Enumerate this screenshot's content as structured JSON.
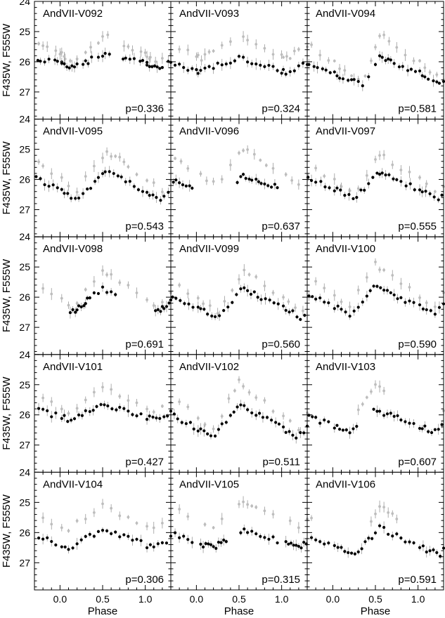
{
  "figure": {
    "ylabel": "F435W, F555W",
    "xlabel": "Phase",
    "x_ticks": [
      "0.0",
      "0.5",
      "1.0"
    ],
    "y_ticks": [
      "24",
      "25",
      "26",
      "27"
    ]
  },
  "colors": {
    "f435w": "#bdbdbd",
    "f555w": "#000000",
    "error": "#9a9a9a",
    "frame": "#000000"
  },
  "chart_data": [
    {
      "type": "scatter",
      "name": "AndVII-V092",
      "period": "p=0.336",
      "xlim": [
        -0.3,
        1.3
      ],
      "ylim": [
        27.9,
        24.0
      ],
      "y_inverted": true,
      "mean_f555w": 25.95,
      "amp_f555w": 0.45,
      "mean_f435w": 25.55,
      "amp_f435w": 0.8,
      "max_phase": 0.55,
      "shape": 0.4,
      "f555w_phases": [
        0.02,
        0.05,
        0.08,
        0.11,
        0.14,
        0.17,
        0.2,
        0.27,
        0.3,
        0.33,
        0.37,
        0.45,
        0.5,
        0.53,
        0.58,
        0.74,
        0.77,
        0.82,
        0.87,
        0.94,
        0.97,
        1.02
      ],
      "f435w_phases": [
        0.02,
        0.06,
        0.12,
        0.2,
        0.3,
        0.36,
        0.45,
        0.5,
        0.56,
        0.75,
        0.8,
        0.85,
        0.95,
        1.0,
        1.05
      ]
    },
    {
      "type": "scatter",
      "name": "AndVII-V093",
      "period": "p=0.324",
      "xlim": [
        -0.3,
        1.3
      ],
      "ylim": [
        27.9,
        24.0
      ],
      "y_inverted": true,
      "mean_f555w": 26.1,
      "amp_f555w": 0.5,
      "mean_f435w": 25.5,
      "amp_f435w": 0.8,
      "max_phase": 0.5,
      "shape": 0.45,
      "f555w_phases": [
        0.02,
        0.05,
        0.1,
        0.15,
        0.2,
        0.25,
        0.3,
        0.35,
        0.4,
        0.45,
        0.5,
        0.55,
        0.6,
        0.65,
        0.7,
        0.75,
        0.8,
        0.85,
        0.9,
        0.95,
        1.0
      ],
      "f435w_phases": [
        0.02,
        0.06,
        0.1,
        0.15,
        0.2,
        0.3,
        0.4,
        0.55,
        0.6,
        0.7,
        0.8,
        0.9,
        1.0
      ]
    },
    {
      "type": "scatter",
      "name": "AndVII-V094",
      "period": "p=0.581",
      "xlim": [
        -0.3,
        1.3
      ],
      "ylim": [
        27.9,
        24.0
      ],
      "y_inverted": true,
      "mean_f555w": 26.3,
      "amp_f555w": 1.0,
      "mean_f435w": 25.9,
      "amp_f435w": 1.6,
      "max_phase": 0.55,
      "shape": 0.2,
      "f555w_phases": [
        0.02,
        0.05,
        0.08,
        0.12,
        0.18,
        0.22,
        0.25,
        0.3,
        0.35,
        0.42,
        0.5,
        0.55,
        0.58,
        0.62,
        0.65,
        0.68,
        0.72,
        0.78,
        0.82,
        0.88,
        0.92,
        0.97
      ],
      "f435w_phases": [
        0.02,
        0.08,
        0.14,
        0.22,
        0.3,
        0.38,
        0.45,
        0.5,
        0.55,
        0.6,
        0.66,
        0.75,
        0.85,
        0.95
      ]
    },
    {
      "type": "scatter",
      "name": "AndVII-V095",
      "period": "p=0.543",
      "xlim": [
        -0.3,
        1.3
      ],
      "ylim": [
        27.9,
        24.0
      ],
      "y_inverted": true,
      "mean_f555w": 26.2,
      "amp_f555w": 0.9,
      "mean_f435w": 25.7,
      "amp_f435w": 1.3,
      "max_phase": 0.55,
      "shape": 0.35,
      "f555w_phases": [
        0.02,
        0.05,
        0.09,
        0.13,
        0.18,
        0.22,
        0.27,
        0.32,
        0.36,
        0.41,
        0.45,
        0.5,
        0.53,
        0.58,
        0.63,
        0.68,
        0.72,
        0.77,
        0.82,
        0.87,
        0.92,
        0.97
      ],
      "f435w_phases": [
        0.02,
        0.1,
        0.2,
        0.3,
        0.4,
        0.5,
        0.55,
        0.6,
        0.65,
        0.7,
        0.75,
        0.8,
        0.9
      ]
    },
    {
      "type": "scatter",
      "name": "AndVII-V096",
      "period": "p=0.637",
      "xlim": [
        -0.3,
        1.3
      ],
      "ylim": [
        27.9,
        24.0
      ],
      "y_inverted": true,
      "mean_f555w": 26.2,
      "amp_f555w": 0.7,
      "mean_f435w": 25.6,
      "amp_f435w": 1.2,
      "max_phase": 0.55,
      "shape": 0.3,
      "f555w_phases": [
        0.48,
        0.52,
        0.55,
        0.58,
        0.62,
        0.65,
        0.7,
        0.73,
        0.76,
        0.8,
        0.84,
        0.88,
        0.92,
        0.95
      ],
      "f435w_phases": [
        0.05,
        0.12,
        0.2,
        0.3,
        0.4,
        0.5,
        0.55,
        0.6,
        0.68,
        0.75,
        0.82,
        0.9
      ]
    },
    {
      "type": "scatter",
      "name": "AndVII-V097",
      "period": "p=0.555",
      "xlim": [
        -0.3,
        1.3
      ],
      "ylim": [
        27.9,
        24.0
      ],
      "y_inverted": true,
      "mean_f555w": 26.2,
      "amp_f555w": 0.8,
      "mean_f435w": 25.8,
      "amp_f435w": 1.3,
      "max_phase": 0.55,
      "shape": 0.3,
      "f555w_phases": [
        0.02,
        0.05,
        0.09,
        0.14,
        0.19,
        0.24,
        0.28,
        0.33,
        0.37,
        0.42,
        0.47,
        0.52,
        0.55,
        0.58,
        0.62,
        0.66,
        0.71,
        0.75,
        0.8,
        0.86,
        0.91,
        0.96
      ],
      "f435w_phases": [
        0.02,
        0.1,
        0.2,
        0.3,
        0.4,
        0.5,
        0.55,
        0.6,
        0.7,
        0.8,
        0.9
      ]
    },
    {
      "type": "scatter",
      "name": "AndVII-V098",
      "period": "p=0.691",
      "xlim": [
        -0.3,
        1.3
      ],
      "ylim": [
        27.9,
        24.0
      ],
      "y_inverted": true,
      "mean_f555w": 26.1,
      "amp_f555w": 0.8,
      "mean_f435w": 25.7,
      "amp_f435w": 1.2,
      "max_phase": 0.5,
      "shape": 0.35,
      "f555w_phases": [
        0.12,
        0.15,
        0.18,
        0.2,
        0.22,
        0.25,
        0.28,
        0.3,
        0.32,
        0.35,
        0.4,
        0.45,
        0.5,
        0.55,
        0.6,
        0.65
      ],
      "f435w_phases": [
        0.02,
        0.1,
        0.2,
        0.3,
        0.4,
        0.5,
        0.55,
        0.6,
        0.7,
        0.8,
        0.9
      ]
    },
    {
      "type": "scatter",
      "name": "AndVII-V099",
      "period": "p=0.560",
      "xlim": [
        -0.3,
        1.3
      ],
      "ylim": [
        27.9,
        24.0
      ],
      "y_inverted": true,
      "mean_f555w": 26.2,
      "amp_f555w": 1.0,
      "mean_f435w": 25.8,
      "amp_f435w": 1.4,
      "max_phase": 0.55,
      "shape": 0.3,
      "f555w_phases": [
        0.02,
        0.05,
        0.09,
        0.13,
        0.18,
        0.22,
        0.27,
        0.32,
        0.37,
        0.42,
        0.47,
        0.52,
        0.56,
        0.6,
        0.64,
        0.68,
        0.72,
        0.76,
        0.81,
        0.86,
        0.91,
        0.96
      ],
      "f435w_phases": [
        0.02,
        0.08,
        0.16,
        0.25,
        0.33,
        0.42,
        0.5,
        0.56,
        0.62,
        0.7,
        0.8,
        0.9
      ]
    },
    {
      "type": "scatter",
      "name": "AndVII-V100",
      "period": "p=0.590",
      "xlim": [
        -0.3,
        1.3
      ],
      "ylim": [
        27.9,
        24.0
      ],
      "y_inverted": true,
      "mean_f555w": 26.1,
      "amp_f555w": 0.9,
      "mean_f435w": 25.6,
      "amp_f435w": 1.4,
      "max_phase": 0.5,
      "shape": 0.3,
      "f555w_phases": [
        0.02,
        0.06,
        0.1,
        0.15,
        0.2,
        0.25,
        0.3,
        0.35,
        0.4,
        0.44,
        0.48,
        0.52,
        0.56,
        0.6,
        0.64,
        0.68,
        0.72,
        0.76,
        0.8,
        0.85,
        0.9,
        0.95
      ],
      "f435w_phases": [
        0.02,
        0.1,
        0.2,
        0.3,
        0.4,
        0.5,
        0.55,
        0.6,
        0.7,
        0.8,
        0.9
      ]
    },
    {
      "type": "scatter",
      "name": "AndVII-V101",
      "period": "p=0.427",
      "xlim": [
        -0.3,
        1.3
      ],
      "ylim": [
        27.9,
        24.0
      ],
      "y_inverted": true,
      "mean_f555w": 25.9,
      "amp_f555w": 0.5,
      "mean_f435w": 25.5,
      "amp_f435w": 0.8,
      "max_phase": 0.5,
      "shape": 0.4,
      "f555w_phases": [
        0.02,
        0.05,
        0.09,
        0.13,
        0.17,
        0.22,
        0.26,
        0.3,
        0.35,
        0.39,
        0.43,
        0.48,
        0.52,
        0.56,
        0.61,
        0.66,
        0.7,
        0.75,
        0.8,
        0.85,
        0.9,
        0.95
      ],
      "f435w_phases": [
        0.02,
        0.1,
        0.2,
        0.3,
        0.4,
        0.5,
        0.6,
        0.7,
        0.8,
        0.9
      ]
    },
    {
      "type": "scatter",
      "name": "AndVII-V102",
      "period": "p=0.511",
      "xlim": [
        -0.3,
        1.3
      ],
      "ylim": [
        27.9,
        24.0
      ],
      "y_inverted": true,
      "mean_f555w": 26.2,
      "amp_f555w": 1.1,
      "mean_f435w": 25.7,
      "amp_f435w": 1.6,
      "max_phase": 0.5,
      "shape": 0.3,
      "f555w_phases": [
        0.02,
        0.05,
        0.09,
        0.13,
        0.17,
        0.22,
        0.26,
        0.3,
        0.35,
        0.4,
        0.44,
        0.48,
        0.52,
        0.56,
        0.6,
        0.65,
        0.7,
        0.74,
        0.78,
        0.83,
        0.88,
        0.93,
        0.97
      ],
      "f435w_phases": [
        0.02,
        0.1,
        0.2,
        0.3,
        0.38,
        0.45,
        0.5,
        0.55,
        0.62,
        0.7,
        0.8,
        0.9
      ]
    },
    {
      "type": "scatter",
      "name": "AndVII-V103",
      "period": "p=0.607",
      "xlim": [
        -0.3,
        1.3
      ],
      "ylim": [
        27.9,
        24.0
      ],
      "y_inverted": true,
      "mean_f555w": 26.2,
      "amp_f555w": 0.7,
      "mean_f435w": 25.6,
      "amp_f435w": 1.2,
      "max_phase": 0.5,
      "shape": 0.3,
      "f555w_phases": [
        0.02,
        0.05,
        0.08,
        0.12,
        0.16,
        0.2,
        0.24,
        0.28,
        0.48,
        0.52,
        0.55,
        0.6,
        0.64,
        0.68,
        0.72,
        0.76,
        0.8,
        0.85,
        0.9,
        0.95
      ],
      "f435w_phases": [
        0.3,
        0.35,
        0.4,
        0.45,
        0.5,
        0.55,
        0.6
      ]
    },
    {
      "type": "scatter",
      "name": "AndVII-V104",
      "period": "p=0.306",
      "xlim": [
        -0.3,
        1.3
      ],
      "ylim": [
        27.9,
        24.0
      ],
      "y_inverted": true,
      "mean_f555w": 26.2,
      "amp_f555w": 0.6,
      "mean_f435w": 25.5,
      "amp_f435w": 0.8,
      "max_phase": 0.5,
      "shape": 0.4,
      "f555w_phases": [
        0.02,
        0.06,
        0.1,
        0.15,
        0.2,
        0.25,
        0.3,
        0.35,
        0.4,
        0.45,
        0.5,
        0.55,
        0.6,
        0.65,
        0.7,
        0.75,
        0.8,
        0.85,
        0.9,
        0.95
      ],
      "f435w_phases": [
        0.02,
        0.1,
        0.2,
        0.3,
        0.4,
        0.5,
        0.6,
        0.7,
        0.8,
        0.9
      ]
    },
    {
      "type": "scatter",
      "name": "AndVII-V105",
      "period": "p=0.315",
      "xlim": [
        -0.3,
        1.3
      ],
      "ylim": [
        27.9,
        24.0
      ],
      "y_inverted": true,
      "mean_f555w": 26.2,
      "amp_f555w": 0.6,
      "mean_f435w": 25.4,
      "amp_f435w": 0.8,
      "max_phase": 0.55,
      "shape": 0.35,
      "f555w_phases": [
        0.05,
        0.08,
        0.11,
        0.14,
        0.17,
        0.2,
        0.23,
        0.26,
        0.29,
        0.32,
        0.35,
        0.52,
        0.56,
        0.6,
        0.65,
        0.7,
        0.75,
        0.8,
        0.85,
        0.9,
        0.95
      ],
      "f435w_phases": [
        0.1,
        0.2,
        0.3,
        0.5,
        0.55,
        0.6,
        0.65,
        0.7,
        0.8,
        0.9
      ]
    },
    {
      "type": "scatter",
      "name": "AndVII-V106",
      "period": "p=0.591",
      "xlim": [
        -0.3,
        1.3
      ],
      "ylim": [
        27.9,
        24.0
      ],
      "y_inverted": true,
      "mean_f555w": 26.3,
      "amp_f555w": 0.9,
      "mean_f435w": 25.8,
      "amp_f435w": 1.4,
      "max_phase": 0.55,
      "shape": 0.3,
      "f555w_phases": [
        0.02,
        0.06,
        0.1,
        0.14,
        0.18,
        0.22,
        0.26,
        0.3,
        0.34,
        0.38,
        0.42,
        0.46,
        0.5,
        0.55,
        0.6,
        0.65,
        0.7,
        0.75,
        0.8,
        0.85,
        0.9,
        0.95
      ],
      "f435w_phases": [
        0.45,
        0.5,
        0.55,
        0.6,
        0.65,
        0.7,
        0.75
      ]
    }
  ]
}
